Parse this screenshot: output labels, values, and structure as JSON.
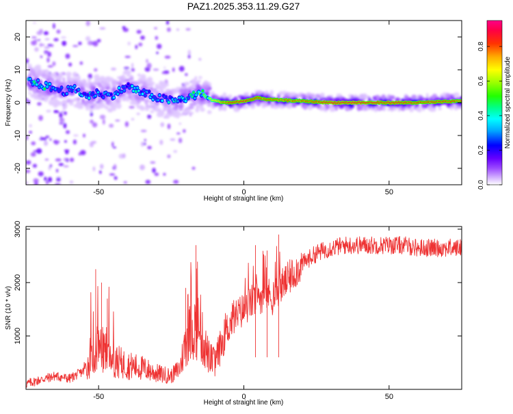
{
  "title": "PAZ1.2025.353.11.29.G27",
  "chart_data": [
    {
      "type": "heatmap",
      "description": "Spectrogram of signal frequency vs height of straight line",
      "xlabel": "Height of straight line (km)",
      "ylabel": "Frequency (Hz)",
      "xlim": [
        -75,
        75
      ],
      "ylim": [
        -25,
        25
      ],
      "xticks": [
        -50,
        0,
        50
      ],
      "yticks": [
        -20,
        -10,
        0,
        10,
        20
      ],
      "colorbar": {
        "label": "Normalized spectral amplitude",
        "range": [
          0.0,
          0.95
        ],
        "ticks": [
          0.0,
          0.2,
          0.4,
          0.6,
          0.8
        ],
        "tick_labels": [
          "0.0",
          "0.2",
          "0.4",
          "0.6",
          "0.8"
        ]
      },
      "ridge": [
        {
          "x": -68,
          "f": 5,
          "amp": 0.45
        },
        {
          "x": -62,
          "f": 3.5,
          "amp": 0.38
        },
        {
          "x": -58,
          "f": 4,
          "amp": 0.42
        },
        {
          "x": -54,
          "f": 2,
          "amp": 0.4
        },
        {
          "x": -50,
          "f": 3,
          "amp": 0.42
        },
        {
          "x": -46,
          "f": 2,
          "amp": 0.35
        },
        {
          "x": -40,
          "f": 5,
          "amp": 0.4
        },
        {
          "x": -35,
          "f": 3,
          "amp": 0.4
        },
        {
          "x": -30,
          "f": 1.5,
          "amp": 0.35
        },
        {
          "x": -24,
          "f": 0.5,
          "amp": 0.42
        },
        {
          "x": -19,
          "f": 1.5,
          "amp": 0.45
        },
        {
          "x": -15,
          "f": 3,
          "amp": 0.55
        },
        {
          "x": -13,
          "f": 2,
          "amp": 0.6
        },
        {
          "x": -11,
          "f": 0.8,
          "amp": 0.7
        },
        {
          "x": -8,
          "f": 0.2,
          "amp": 0.8
        },
        {
          "x": -5,
          "f": 0,
          "amp": 0.88
        },
        {
          "x": -2,
          "f": 0.2,
          "amp": 0.9
        },
        {
          "x": 0,
          "f": 0.5,
          "amp": 0.9
        },
        {
          "x": 3,
          "f": 1,
          "amp": 0.88
        },
        {
          "x": 5,
          "f": 1.5,
          "amp": 0.86
        },
        {
          "x": 8,
          "f": 1,
          "amp": 0.85
        },
        {
          "x": 12,
          "f": 0.8,
          "amp": 0.85
        },
        {
          "x": 20,
          "f": 0.5,
          "amp": 0.85
        },
        {
          "x": 30,
          "f": 0,
          "amp": 0.92
        },
        {
          "x": 40,
          "f": 0,
          "amp": 0.92
        },
        {
          "x": 50,
          "f": 0,
          "amp": 0.9
        },
        {
          "x": 60,
          "f": 0,
          "amp": 0.88
        },
        {
          "x": 70,
          "f": 0.3,
          "amp": 0.88
        },
        {
          "x": 75,
          "f": 0.5,
          "amp": 0.85
        }
      ]
    },
    {
      "type": "line",
      "description": "SNR vs height of straight line",
      "xlabel": "Height of straight line (km)",
      "ylabel": "SNR (10 * v/v)",
      "xlim": [
        -75,
        75
      ],
      "ylim": [
        0,
        3050
      ],
      "xticks": [
        -50,
        0,
        50
      ],
      "yticks": [
        1000,
        2000,
        3000
      ],
      "color": "#ee3333",
      "series": [
        {
          "name": "SNR",
          "x": [
            -75,
            -70,
            -65,
            -60,
            -55,
            -52,
            -50,
            -48,
            -45,
            -40,
            -35,
            -30,
            -25,
            -22,
            -20,
            -18,
            -16,
            -14,
            -12,
            -10,
            -8,
            -6,
            -4,
            -2,
            0,
            2,
            4,
            6,
            8,
            10,
            12,
            15,
            20,
            25,
            30,
            35,
            40,
            45,
            50,
            55,
            60,
            65,
            70,
            75
          ],
          "values": [
            100,
            180,
            250,
            200,
            350,
            600,
            800,
            700,
            550,
            450,
            400,
            300,
            250,
            400,
            900,
            1100,
            1200,
            900,
            600,
            500,
            800,
            1100,
            1300,
            1400,
            1500,
            1600,
            1700,
            1750,
            1800,
            1700,
            1900,
            2050,
            2350,
            2550,
            2650,
            2700,
            2700,
            2700,
            2700,
            2700,
            2650,
            2650,
            2650,
            2650
          ]
        }
      ],
      "spikes": [
        {
          "x": -51,
          "y": 2250
        },
        {
          "x": -49,
          "y": 2000
        },
        {
          "x": -47,
          "y": 1700
        },
        {
          "x": -20,
          "y": 1900
        },
        {
          "x": -16.5,
          "y": 2700
        },
        {
          "x": 12,
          "y": 2900
        },
        {
          "x": 8,
          "y": 2600
        },
        {
          "x": 4,
          "y": 2700
        }
      ]
    }
  ]
}
